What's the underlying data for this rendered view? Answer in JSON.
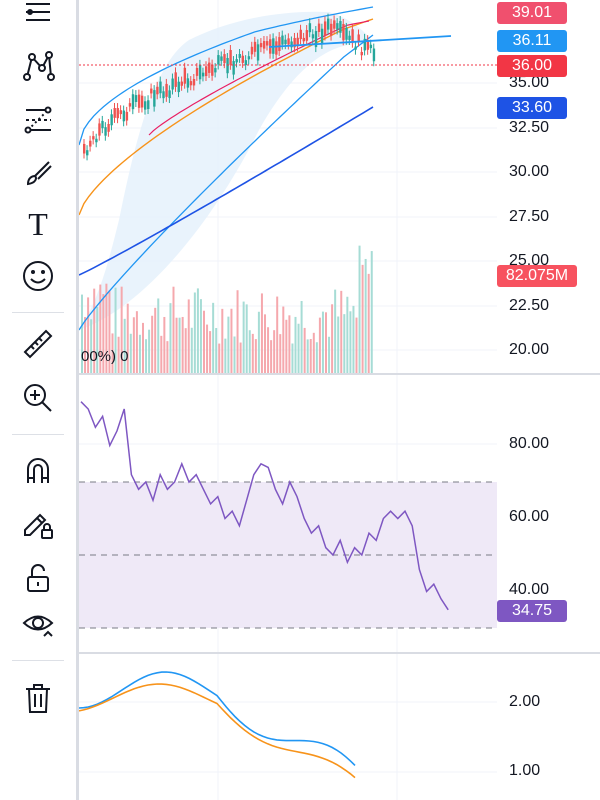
{
  "toolbar": {
    "tools": [
      {
        "icon": "lines-menu-icon"
      },
      {
        "icon": "pattern-icon"
      },
      {
        "icon": "fib-icon"
      },
      {
        "icon": "brush-icon"
      },
      {
        "icon": "text-icon"
      },
      {
        "icon": "emoji-icon"
      },
      {
        "icon": "ruler-icon"
      },
      {
        "icon": "zoom-in-icon"
      },
      {
        "icon": "magnet-icon"
      },
      {
        "icon": "lock-drawing-icon"
      },
      {
        "icon": "unlock-icon"
      },
      {
        "icon": "eye-icon"
      },
      {
        "icon": "trash-icon"
      }
    ],
    "text_glyph": "T"
  },
  "price_pane": {
    "axis_labels": [
      "35.00",
      "32.50",
      "30.00",
      "27.50",
      "25.00",
      "22.50",
      "20.00"
    ],
    "tags": [
      {
        "text": "39.01",
        "color": "#f0506e"
      },
      {
        "text": "36.11",
        "color": "#2196f3"
      },
      {
        "text": "36.00",
        "color": "#f23645"
      },
      {
        "text": "33.60",
        "color": "#1e53e5"
      },
      {
        "text": "82.075M",
        "color": "#f7525f"
      }
    ],
    "legend_fragment": "00%) 0"
  },
  "rsi_pane": {
    "axis_labels": [
      "80.00",
      "60.00",
      "40.00"
    ],
    "tag": {
      "text": "34.75",
      "color": "#7e57c2"
    }
  },
  "macd_pane": {
    "axis_labels": [
      "2.00",
      "1.00"
    ]
  },
  "colors": {
    "up": "#26a69a",
    "down": "#ef5350",
    "rsi_line": "#7e57c2",
    "rsi_band": "#efe9f7",
    "ma_orange": "#f7931a",
    "ma_pink": "#e91e63",
    "ma_blue": "#1e53e5",
    "bb_blue": "#2196f3",
    "grid": "#f0f3fa"
  }
}
